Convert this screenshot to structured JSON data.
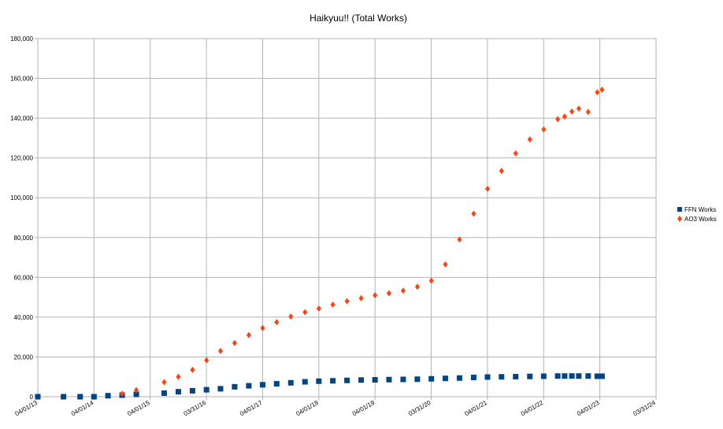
{
  "chart_data": {
    "type": "scatter",
    "title": "Haikyuu!! (Total Works)",
    "xlabel": "",
    "ylabel": "",
    "x_axis": {
      "type": "date",
      "min": "2013-04-01",
      "max": "2024-03-31",
      "tick_labels": [
        "04/01/13",
        "04/01/14",
        "04/01/15",
        "03/31/16",
        "04/01/17",
        "04/01/18",
        "04/01/19",
        "03/31/20",
        "04/01/21",
        "04/01/22",
        "04/01/23",
        "03/31/24"
      ]
    },
    "y_axis": {
      "min": 0,
      "max": 180000,
      "step": 20000,
      "tick_labels": [
        "0",
        "20,000",
        "40,000",
        "60,000",
        "80,000",
        "100,000",
        "120,000",
        "140,000",
        "160,000",
        "180,000"
      ]
    },
    "grid": true,
    "legend_position": "right",
    "series": [
      {
        "name": "FFN Works",
        "marker": "square",
        "color": "#004586",
        "points": [
          [
            "2013-04-01",
            0
          ],
          [
            "2013-09-15",
            0
          ],
          [
            "2014-01-01",
            0
          ],
          [
            "2014-04-01",
            0
          ],
          [
            "2014-07-01",
            500
          ],
          [
            "2014-10-01",
            800
          ],
          [
            "2015-01-01",
            1200
          ],
          [
            "2015-07-01",
            1800
          ],
          [
            "2015-10-01",
            2500
          ],
          [
            "2016-01-01",
            3000
          ],
          [
            "2016-04-01",
            3500
          ],
          [
            "2016-07-01",
            4000
          ],
          [
            "2016-10-01",
            5000
          ],
          [
            "2017-01-01",
            5500
          ],
          [
            "2017-04-01",
            6000
          ],
          [
            "2017-07-01",
            6500
          ],
          [
            "2017-10-01",
            7000
          ],
          [
            "2018-01-01",
            7500
          ],
          [
            "2018-04-01",
            7800
          ],
          [
            "2018-07-01",
            8000
          ],
          [
            "2018-10-01",
            8200
          ],
          [
            "2019-01-01",
            8400
          ],
          [
            "2019-04-01",
            8500
          ],
          [
            "2019-07-01",
            8600
          ],
          [
            "2019-10-01",
            8700
          ],
          [
            "2020-01-01",
            8800
          ],
          [
            "2020-04-01",
            9000
          ],
          [
            "2020-07-01",
            9200
          ],
          [
            "2020-10-01",
            9400
          ],
          [
            "2021-01-01",
            9700
          ],
          [
            "2021-04-01",
            9900
          ],
          [
            "2021-07-01",
            10000
          ],
          [
            "2021-10-01",
            10100
          ],
          [
            "2022-01-01",
            10200
          ],
          [
            "2022-04-01",
            10300
          ],
          [
            "2022-07-01",
            10400
          ],
          [
            "2022-08-15",
            10400
          ],
          [
            "2022-10-01",
            10400
          ],
          [
            "2022-11-15",
            10400
          ],
          [
            "2023-01-15",
            10400
          ],
          [
            "2023-03-15",
            10300
          ],
          [
            "2023-04-15",
            10300
          ]
        ]
      },
      {
        "name": "AO3 Works",
        "marker": "diamond",
        "color": "#ff420e",
        "points": [
          [
            "2014-10-01",
            1500
          ],
          [
            "2015-01-01",
            3300
          ],
          [
            "2015-07-01",
            7300
          ],
          [
            "2015-10-01",
            10000
          ],
          [
            "2016-01-01",
            13500
          ],
          [
            "2016-04-01",
            18300
          ],
          [
            "2016-07-01",
            23000
          ],
          [
            "2016-10-01",
            27000
          ],
          [
            "2017-01-01",
            31000
          ],
          [
            "2017-04-01",
            34500
          ],
          [
            "2017-07-01",
            37500
          ],
          [
            "2017-10-01",
            40300
          ],
          [
            "2018-01-01",
            42500
          ],
          [
            "2018-04-01",
            44300
          ],
          [
            "2018-07-01",
            46300
          ],
          [
            "2018-10-01",
            48000
          ],
          [
            "2019-01-01",
            49500
          ],
          [
            "2019-04-01",
            51000
          ],
          [
            "2019-07-01",
            52000
          ],
          [
            "2019-10-01",
            53300
          ],
          [
            "2020-01-01",
            55300
          ],
          [
            "2020-04-01",
            58300
          ],
          [
            "2020-07-01",
            66500
          ],
          [
            "2020-10-01",
            79000
          ],
          [
            "2021-01-01",
            92000
          ],
          [
            "2021-04-01",
            104500
          ],
          [
            "2021-07-01",
            113500
          ],
          [
            "2021-10-01",
            122300
          ],
          [
            "2022-01-01",
            129300
          ],
          [
            "2022-04-01",
            134300
          ],
          [
            "2022-07-01",
            139500
          ],
          [
            "2022-08-15",
            140800
          ],
          [
            "2022-10-01",
            143300
          ],
          [
            "2022-11-15",
            144800
          ],
          [
            "2023-01-15",
            143100
          ],
          [
            "2023-03-15",
            153000
          ],
          [
            "2023-04-15",
            154300
          ]
        ]
      }
    ]
  }
}
